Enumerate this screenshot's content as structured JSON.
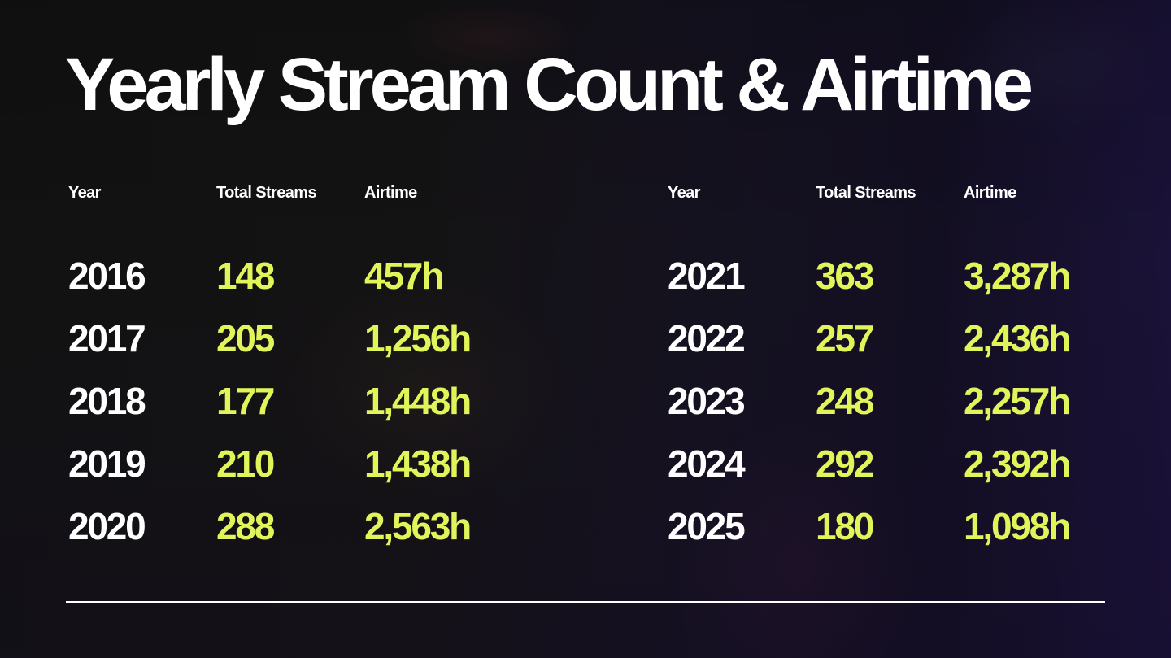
{
  "slide": {
    "title": "Yearly Stream Count & Airtime",
    "colors": {
      "title": "#ffffff",
      "year": "#ffffff",
      "accent": "#e1f55b",
      "divider": "#ffffff"
    }
  },
  "tables": [
    {
      "headers": {
        "year": "Year",
        "streams": "Total Streams",
        "airtime": "Airtime"
      },
      "rows": [
        {
          "year": "2016",
          "streams": "148",
          "airtime": "457h"
        },
        {
          "year": "2017",
          "streams": "205",
          "airtime": "1,256h"
        },
        {
          "year": "2018",
          "streams": "177",
          "airtime": "1,448h"
        },
        {
          "year": "2019",
          "streams": "210",
          "airtime": "1,438h"
        },
        {
          "year": "2020",
          "streams": "288",
          "airtime": "2,563h"
        }
      ]
    },
    {
      "headers": {
        "year": "Year",
        "streams": "Total Streams",
        "airtime": "Airtime"
      },
      "rows": [
        {
          "year": "2021",
          "streams": "363",
          "airtime": "3,287h"
        },
        {
          "year": "2022",
          "streams": "257",
          "airtime": "2,436h"
        },
        {
          "year": "2023",
          "streams": "248",
          "airtime": "2,257h"
        },
        {
          "year": "2024",
          "streams": "292",
          "airtime": "2,392h"
        },
        {
          "year": "2025",
          "streams": "180",
          "airtime": "1,098h"
        }
      ]
    }
  ],
  "chart_data": {
    "type": "table",
    "title": "Yearly Stream Count & Airtime",
    "columns": [
      "Year",
      "Total Streams",
      "Airtime"
    ],
    "categories": [
      "2016",
      "2017",
      "2018",
      "2019",
      "2020",
      "2021",
      "2022",
      "2023",
      "2024",
      "2025"
    ],
    "series": [
      {
        "name": "Total Streams",
        "values": [
          148,
          205,
          177,
          210,
          288,
          363,
          257,
          248,
          292,
          180
        ]
      },
      {
        "name": "Airtime (hours)",
        "values": [
          457,
          1256,
          1448,
          1438,
          2563,
          3287,
          2436,
          2257,
          2392,
          1098
        ]
      }
    ]
  }
}
